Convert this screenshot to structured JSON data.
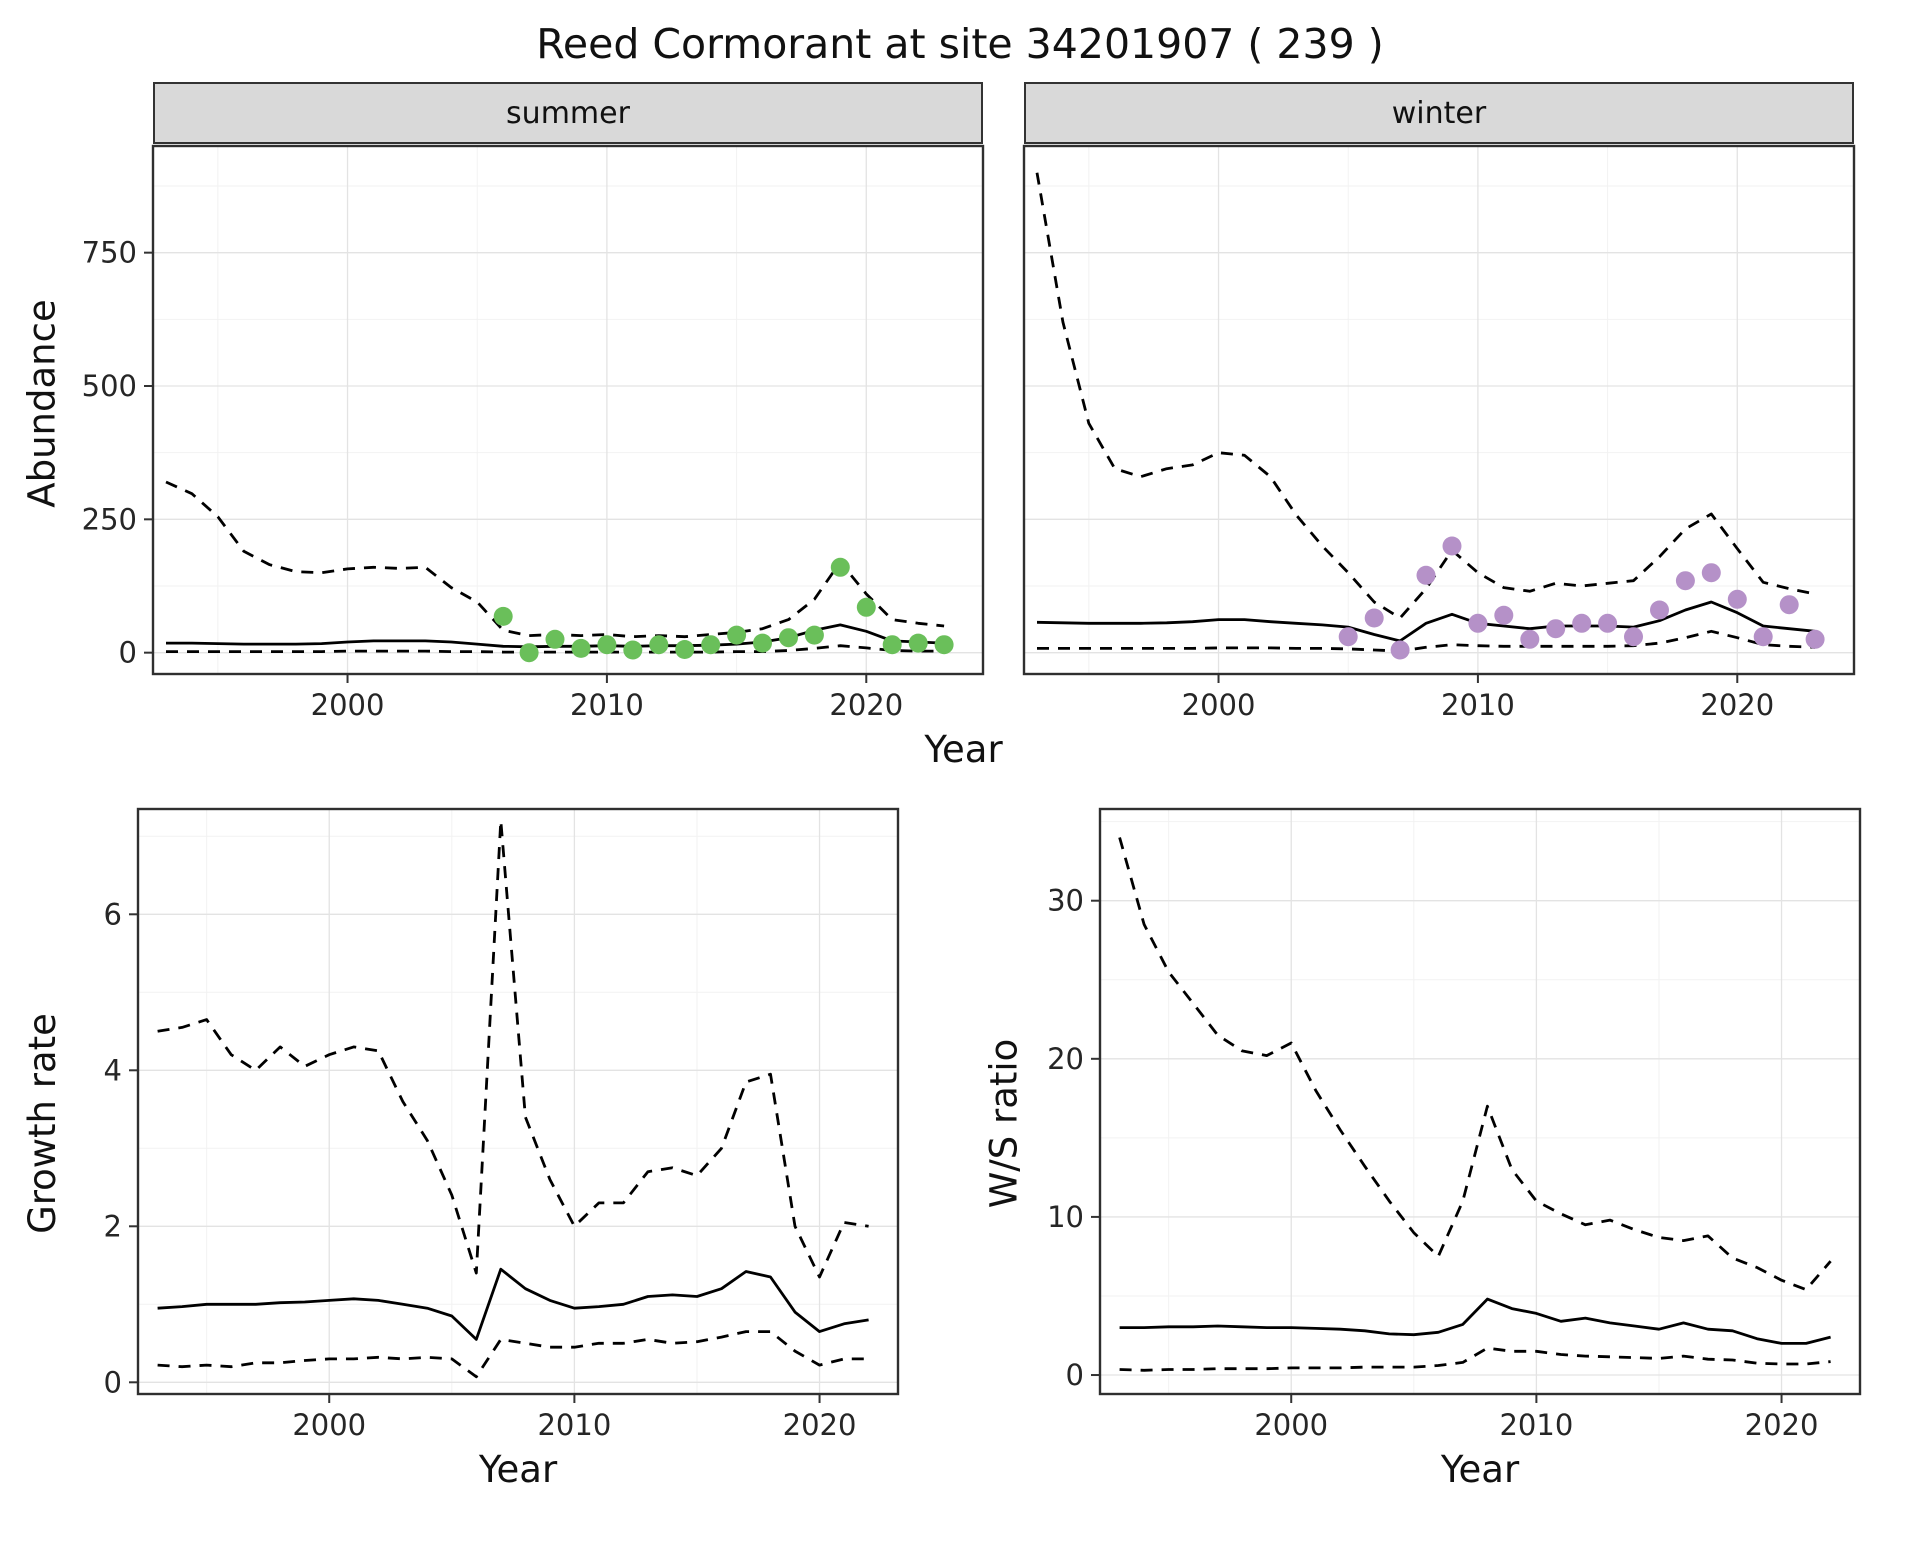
{
  "title": "Reed Cormorant at site 34201907 ( 239 )",
  "style": {
    "panel_bg": "#ffffff",
    "grid_major": "#e3e3e3",
    "grid_minor": "#f2f2f2",
    "line_color": "#000000",
    "tick_color": "#333333",
    "border_color": "#2f2f2f",
    "strip_bg": "#d9d9d9",
    "summer_point": "#6abf5a",
    "winter_point": "#b591c8"
  },
  "chart_data": [
    {
      "type": "line",
      "facet_label": "summer",
      "ylabel": "Abundance",
      "xlabel": "Year",
      "xlim": [
        1992.5,
        2024.5
      ],
      "ylim": [
        -40,
        950
      ],
      "xticks": [
        2000,
        2010,
        2020
      ],
      "yticks": [
        0,
        250,
        500,
        750
      ],
      "xminor": [
        1995,
        2005,
        2015
      ],
      "yminor": [
        125,
        375,
        625,
        875
      ],
      "x": [
        1993,
        1994,
        1995,
        1996,
        1997,
        1998,
        1999,
        2000,
        2001,
        2002,
        2003,
        2004,
        2005,
        2006,
        2007,
        2008,
        2009,
        2010,
        2011,
        2012,
        2013,
        2014,
        2015,
        2016,
        2017,
        2018,
        2019,
        2020,
        2021,
        2022,
        2023
      ],
      "series": [
        {
          "name": "upper 95% CI",
          "style": "dashed",
          "values": [
            320,
            298,
            255,
            190,
            165,
            152,
            150,
            157,
            160,
            158,
            160,
            122,
            95,
            42,
            32,
            34,
            32,
            34,
            30,
            32,
            30,
            34,
            38,
            45,
            62,
            100,
            170,
            110,
            62,
            55,
            50
          ]
        },
        {
          "name": "fitted mean",
          "style": "solid",
          "values": [
            18,
            18,
            17,
            16,
            16,
            16,
            17,
            20,
            22,
            22,
            22,
            20,
            16,
            12,
            11,
            12,
            12,
            13,
            12,
            13,
            13,
            14,
            16,
            20,
            28,
            42,
            52,
            40,
            22,
            20,
            18
          ]
        },
        {
          "name": "lower 95% CI",
          "style": "dashed",
          "values": [
            2,
            2,
            2,
            2,
            2,
            2,
            2,
            3,
            3,
            3,
            3,
            2,
            2,
            1,
            1,
            1,
            1,
            1,
            1,
            1,
            1,
            1,
            2,
            2,
            4,
            8,
            13,
            9,
            4,
            3,
            3
          ]
        }
      ],
      "points": {
        "name": "observed summer counts",
        "color_key": "summer_point",
        "x": [
          2006,
          2007,
          2008,
          2009,
          2010,
          2011,
          2012,
          2013,
          2014,
          2015,
          2016,
          2017,
          2018,
          2019,
          2020,
          2021,
          2022,
          2023
        ],
        "y": [
          68,
          0,
          25,
          8,
          15,
          5,
          15,
          6,
          15,
          33,
          18,
          28,
          33,
          160,
          85,
          15,
          18,
          15
        ]
      }
    },
    {
      "type": "line",
      "facet_label": "winter",
      "ylabel": "Abundance",
      "xlabel": "Year",
      "xlim": [
        1992.5,
        2024.5
      ],
      "ylim": [
        -40,
        950
      ],
      "xticks": [
        2000,
        2010,
        2020
      ],
      "yticks": [
        0,
        250,
        500,
        750
      ],
      "xminor": [
        1995,
        2005,
        2015
      ],
      "yminor": [
        125,
        375,
        625,
        875
      ],
      "x": [
        1993,
        1994,
        1995,
        1996,
        1997,
        1998,
        1999,
        2000,
        2001,
        2002,
        2003,
        2004,
        2005,
        2006,
        2007,
        2008,
        2009,
        2010,
        2011,
        2012,
        2013,
        2014,
        2015,
        2016,
        2017,
        2018,
        2019,
        2020,
        2021,
        2022,
        2023
      ],
      "series": [
        {
          "name": "upper 95% CI",
          "style": "dashed",
          "values": [
            900,
            620,
            430,
            345,
            330,
            345,
            352,
            375,
            370,
            330,
            258,
            200,
            150,
            95,
            65,
            120,
            192,
            150,
            122,
            115,
            130,
            125,
            130,
            135,
            180,
            232,
            260,
            195,
            132,
            120,
            110
          ]
        },
        {
          "name": "fitted mean",
          "style": "solid",
          "values": [
            57,
            56,
            55,
            55,
            55,
            56,
            58,
            62,
            62,
            58,
            55,
            52,
            48,
            34,
            22,
            55,
            72,
            55,
            50,
            45,
            50,
            50,
            50,
            48,
            60,
            80,
            95,
            75,
            50,
            45,
            40
          ]
        },
        {
          "name": "lower 95% CI",
          "style": "dashed",
          "values": [
            8,
            8,
            8,
            8,
            8,
            8,
            8,
            9,
            9,
            9,
            8,
            8,
            7,
            5,
            3,
            10,
            15,
            13,
            12,
            12,
            12,
            12,
            12,
            13,
            18,
            28,
            40,
            28,
            15,
            12,
            10
          ]
        }
      ],
      "points": {
        "name": "observed winter counts",
        "color_key": "winter_point",
        "x": [
          2005,
          2006,
          2007,
          2008,
          2009,
          2010,
          2011,
          2012,
          2013,
          2014,
          2015,
          2016,
          2017,
          2018,
          2019,
          2020,
          2021,
          2022,
          2023
        ],
        "y": [
          30,
          65,
          5,
          145,
          200,
          55,
          70,
          25,
          45,
          55,
          55,
          30,
          80,
          135,
          150,
          100,
          30,
          90,
          25
        ]
      }
    },
    {
      "type": "line",
      "facet_label": "",
      "ylabel": "Growth rate",
      "xlabel": "Year",
      "xlim": [
        1992.2,
        2023.2
      ],
      "ylim": [
        -0.15,
        7.35
      ],
      "xticks": [
        2000,
        2010,
        2020
      ],
      "yticks": [
        0,
        2,
        4,
        6
      ],
      "xminor": [
        1995,
        2005,
        2015
      ],
      "yminor": [
        1,
        3,
        5,
        7
      ],
      "x": [
        1993,
        1994,
        1995,
        1996,
        1997,
        1998,
        1999,
        2000,
        2001,
        2002,
        2003,
        2004,
        2005,
        2006,
        2007,
        2008,
        2009,
        2010,
        2011,
        2012,
        2013,
        2014,
        2015,
        2016,
        2017,
        2018,
        2019,
        2020,
        2021,
        2022
      ],
      "series": [
        {
          "name": "upper 95% CI",
          "style": "dashed",
          "values": [
            4.5,
            4.55,
            4.65,
            4.2,
            4.0,
            4.3,
            4.05,
            4.2,
            4.3,
            4.25,
            3.6,
            3.1,
            2.4,
            1.4,
            7.2,
            3.4,
            2.6,
            2.0,
            2.3,
            2.3,
            2.7,
            2.75,
            2.65,
            3.0,
            3.85,
            3.95,
            2.0,
            1.35,
            2.05,
            2.0
          ]
        },
        {
          "name": "fitted mean",
          "style": "solid",
          "values": [
            0.95,
            0.97,
            1.0,
            1.0,
            1.0,
            1.02,
            1.03,
            1.05,
            1.07,
            1.05,
            1.0,
            0.95,
            0.85,
            0.55,
            1.45,
            1.2,
            1.05,
            0.95,
            0.97,
            1.0,
            1.1,
            1.12,
            1.1,
            1.2,
            1.42,
            1.35,
            0.9,
            0.65,
            0.75,
            0.8
          ]
        },
        {
          "name": "lower 95% CI",
          "style": "dashed",
          "values": [
            0.22,
            0.2,
            0.22,
            0.2,
            0.25,
            0.25,
            0.28,
            0.3,
            0.3,
            0.32,
            0.3,
            0.32,
            0.3,
            0.07,
            0.55,
            0.5,
            0.45,
            0.45,
            0.5,
            0.5,
            0.55,
            0.5,
            0.52,
            0.58,
            0.65,
            0.65,
            0.4,
            0.22,
            0.3,
            0.3
          ]
        }
      ]
    },
    {
      "type": "line",
      "facet_label": "",
      "ylabel": "W/S ratio",
      "xlabel": "Year",
      "xlim": [
        1992.2,
        2023.2
      ],
      "ylim": [
        -1.2,
        35.8
      ],
      "xticks": [
        2000,
        2010,
        2020
      ],
      "yticks": [
        0,
        10,
        20,
        30
      ],
      "xminor": [
        1995,
        2005,
        2015
      ],
      "yminor": [
        5,
        15,
        25,
        35
      ],
      "x": [
        1993,
        1994,
        1995,
        1996,
        1997,
        1998,
        1999,
        2000,
        2001,
        2002,
        2003,
        2004,
        2005,
        2006,
        2007,
        2008,
        2009,
        2010,
        2011,
        2012,
        2013,
        2014,
        2015,
        2016,
        2017,
        2018,
        2019,
        2020,
        2021,
        2022
      ],
      "series": [
        {
          "name": "upper 95% CI",
          "style": "dashed",
          "values": [
            34,
            28.5,
            25.5,
            23.5,
            21.5,
            20.5,
            20.2,
            21,
            18,
            15.5,
            13.2,
            11,
            9,
            7.5,
            11,
            17,
            13,
            11,
            10.2,
            9.5,
            9.8,
            9.2,
            8.7,
            8.5,
            8.8,
            7.4,
            6.8,
            6.0,
            5.4,
            7.2
          ]
        },
        {
          "name": "fitted mean",
          "style": "solid",
          "values": [
            3.0,
            3.0,
            3.05,
            3.05,
            3.1,
            3.05,
            3.0,
            3.0,
            2.95,
            2.9,
            2.8,
            2.6,
            2.55,
            2.7,
            3.2,
            4.8,
            4.2,
            3.9,
            3.4,
            3.6,
            3.3,
            3.1,
            2.9,
            3.3,
            2.9,
            2.8,
            2.3,
            2.0,
            2.0,
            2.4
          ]
        },
        {
          "name": "lower 95% CI",
          "style": "dashed",
          "values": [
            0.35,
            0.3,
            0.35,
            0.35,
            0.4,
            0.4,
            0.4,
            0.45,
            0.45,
            0.45,
            0.5,
            0.5,
            0.5,
            0.6,
            0.8,
            1.7,
            1.5,
            1.5,
            1.3,
            1.2,
            1.15,
            1.1,
            1.05,
            1.2,
            1.0,
            0.95,
            0.75,
            0.7,
            0.7,
            0.85
          ]
        }
      ]
    }
  ]
}
